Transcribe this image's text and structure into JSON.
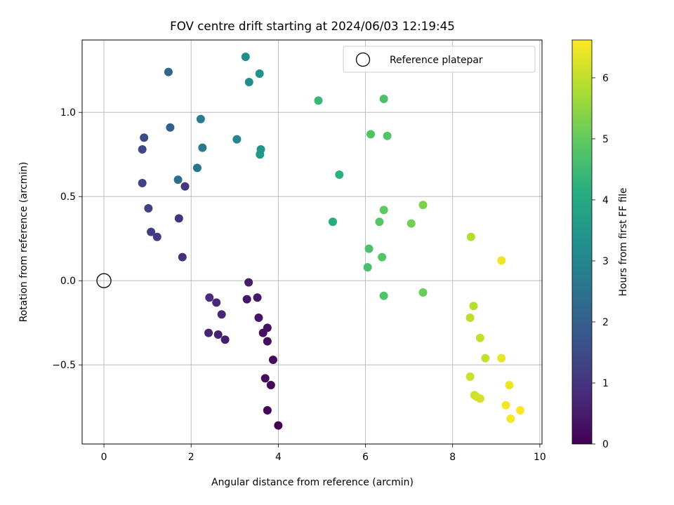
{
  "chart_data": {
    "type": "scatter",
    "title": "FOV centre drift starting at 2024/06/03 12:19:45",
    "xlabel": "Angular distance from reference (arcmin)",
    "ylabel": "Rotation from reference (arcmin)",
    "colorbar_label": "Hours from first FF file",
    "colormap": "viridis",
    "xlim": [
      -0.5,
      10.05
    ],
    "ylim": [
      -0.97,
      1.43
    ],
    "clim": [
      0,
      6.62
    ],
    "x_ticks": [
      0,
      2,
      4,
      6,
      8,
      10
    ],
    "x_tick_labels": [
      "0",
      "2",
      "4",
      "6",
      "8",
      "10"
    ],
    "y_ticks": [
      -0.5,
      0.0,
      0.5,
      1.0
    ],
    "y_tick_labels": [
      "−0.5",
      "0.0",
      "0.5",
      "1.0"
    ],
    "colorbar_ticks": [
      0,
      1,
      2,
      3,
      4,
      5,
      6
    ],
    "colorbar_tick_labels": [
      "0",
      "1",
      "2",
      "3",
      "4",
      "5",
      "6"
    ],
    "grid": true,
    "legend": {
      "placement": "top-right",
      "label": "Reference platepar"
    },
    "reference_point": {
      "x": 0,
      "y": 0
    },
    "points": [
      {
        "x": 4.0,
        "y": -0.86,
        "h": 0.0
      },
      {
        "x": 3.75,
        "y": -0.77,
        "h": 0.08
      },
      {
        "x": 3.83,
        "y": -0.62,
        "h": 0.12
      },
      {
        "x": 3.7,
        "y": -0.58,
        "h": 0.16
      },
      {
        "x": 3.88,
        "y": -0.47,
        "h": 0.2
      },
      {
        "x": 3.75,
        "y": -0.36,
        "h": 0.24
      },
      {
        "x": 3.65,
        "y": -0.31,
        "h": 0.28
      },
      {
        "x": 3.75,
        "y": -0.28,
        "h": 0.32
      },
      {
        "x": 3.55,
        "y": -0.22,
        "h": 0.36
      },
      {
        "x": 3.28,
        "y": -0.11,
        "h": 0.4
      },
      {
        "x": 3.52,
        "y": -0.1,
        "h": 0.45
      },
      {
        "x": 3.32,
        "y": -0.01,
        "h": 0.5
      },
      {
        "x": 2.78,
        "y": -0.35,
        "h": 0.55
      },
      {
        "x": 2.62,
        "y": -0.32,
        "h": 0.62
      },
      {
        "x": 2.4,
        "y": -0.31,
        "h": 0.68
      },
      {
        "x": 2.7,
        "y": -0.2,
        "h": 0.72
      },
      {
        "x": 2.58,
        "y": -0.13,
        "h": 0.78
      },
      {
        "x": 2.42,
        "y": -0.1,
        "h": 0.82
      },
      {
        "x": 1.8,
        "y": 0.14,
        "h": 0.9
      },
      {
        "x": 1.72,
        "y": 0.37,
        "h": 1.0
      },
      {
        "x": 1.86,
        "y": 0.56,
        "h": 1.05
      },
      {
        "x": 1.22,
        "y": 0.26,
        "h": 1.12
      },
      {
        "x": 1.08,
        "y": 0.29,
        "h": 1.18
      },
      {
        "x": 1.02,
        "y": 0.43,
        "h": 1.25
      },
      {
        "x": 0.88,
        "y": 0.58,
        "h": 1.32
      },
      {
        "x": 0.88,
        "y": 0.78,
        "h": 1.4
      },
      {
        "x": 0.92,
        "y": 0.85,
        "h": 1.48
      },
      {
        "x": 1.52,
        "y": 0.91,
        "h": 2.05
      },
      {
        "x": 1.48,
        "y": 1.24,
        "h": 2.2
      },
      {
        "x": 1.7,
        "y": 0.6,
        "h": 2.4
      },
      {
        "x": 2.14,
        "y": 0.67,
        "h": 2.6
      },
      {
        "x": 2.26,
        "y": 0.79,
        "h": 2.7
      },
      {
        "x": 2.22,
        "y": 0.96,
        "h": 2.75
      },
      {
        "x": 3.05,
        "y": 0.84,
        "h": 3.0
      },
      {
        "x": 3.25,
        "y": 1.33,
        "h": 3.15
      },
      {
        "x": 3.33,
        "y": 1.18,
        "h": 3.22
      },
      {
        "x": 3.57,
        "y": 1.23,
        "h": 3.3
      },
      {
        "x": 3.6,
        "y": 0.78,
        "h": 3.4
      },
      {
        "x": 3.58,
        "y": 0.75,
        "h": 3.45
      },
      {
        "x": 5.25,
        "y": 0.35,
        "h": 4.05
      },
      {
        "x": 5.4,
        "y": 0.63,
        "h": 4.2
      },
      {
        "x": 4.92,
        "y": 1.07,
        "h": 4.4
      },
      {
        "x": 6.42,
        "y": 1.08,
        "h": 4.7
      },
      {
        "x": 6.12,
        "y": 0.87,
        "h": 4.75
      },
      {
        "x": 6.5,
        "y": 0.86,
        "h": 4.8
      },
      {
        "x": 6.05,
        "y": 0.08,
        "h": 4.65
      },
      {
        "x": 6.08,
        "y": 0.19,
        "h": 4.7
      },
      {
        "x": 6.42,
        "y": -0.09,
        "h": 4.75
      },
      {
        "x": 6.38,
        "y": 0.14,
        "h": 4.8
      },
      {
        "x": 6.32,
        "y": 0.35,
        "h": 4.85
      },
      {
        "x": 6.42,
        "y": 0.42,
        "h": 4.95
      },
      {
        "x": 7.32,
        "y": -0.07,
        "h": 5.1
      },
      {
        "x": 7.05,
        "y": 0.34,
        "h": 5.2
      },
      {
        "x": 7.32,
        "y": 0.45,
        "h": 5.3
      },
      {
        "x": 8.42,
        "y": 0.26,
        "h": 5.85
      },
      {
        "x": 8.48,
        "y": -0.15,
        "h": 5.9
      },
      {
        "x": 8.4,
        "y": -0.22,
        "h": 5.95
      },
      {
        "x": 8.63,
        "y": -0.34,
        "h": 6.0
      },
      {
        "x": 8.75,
        "y": -0.46,
        "h": 6.05
      },
      {
        "x": 8.4,
        "y": -0.57,
        "h": 6.1
      },
      {
        "x": 8.5,
        "y": -0.68,
        "h": 6.12
      },
      {
        "x": 8.55,
        "y": -0.69,
        "h": 6.15
      },
      {
        "x": 8.63,
        "y": -0.7,
        "h": 6.2
      },
      {
        "x": 9.12,
        "y": -0.46,
        "h": 6.4
      },
      {
        "x": 9.12,
        "y": 0.12,
        "h": 6.5
      },
      {
        "x": 9.3,
        "y": -0.62,
        "h": 6.45
      },
      {
        "x": 9.22,
        "y": -0.74,
        "h": 6.52
      },
      {
        "x": 9.33,
        "y": -0.82,
        "h": 6.55
      },
      {
        "x": 9.55,
        "y": -0.77,
        "h": 6.6
      }
    ]
  }
}
